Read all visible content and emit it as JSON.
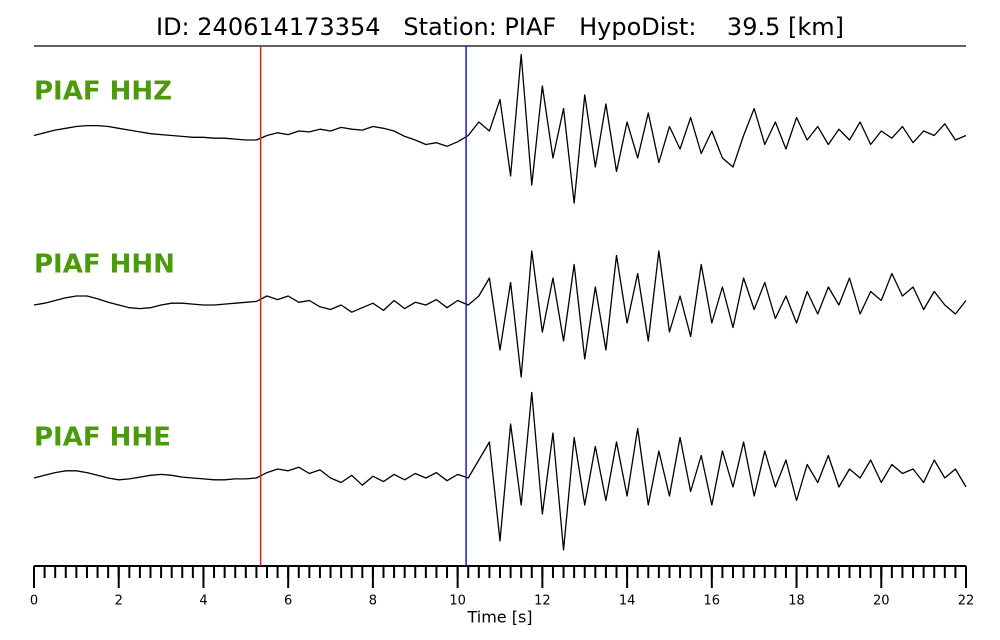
{
  "chart_data": {
    "type": "seismogram",
    "title": "ID: 240614173354   Station: PIAF   HypoDist:    39.5 [km]",
    "xlabel": "Time [s]",
    "xlim": [
      0,
      22
    ],
    "xticks": [
      0,
      2,
      4,
      6,
      8,
      10,
      12,
      14,
      16,
      18,
      20,
      22
    ],
    "xminor": 0.25,
    "ylim": [
      -1,
      1
    ],
    "label_color": "#4a9a0a",
    "markers": [
      {
        "x": 5.35,
        "color": "#e0201a"
      },
      {
        "x": 10.2,
        "color": "#1a1ad0"
      }
    ],
    "x": [
      0,
      0.25,
      0.5,
      0.75,
      1,
      1.25,
      1.5,
      1.75,
      2,
      2.25,
      2.5,
      2.75,
      3,
      3.25,
      3.5,
      3.75,
      4,
      4.25,
      4.5,
      4.75,
      5,
      5.25,
      5.5,
      5.75,
      6,
      6.25,
      6.5,
      6.75,
      7,
      7.25,
      7.5,
      7.75,
      8,
      8.25,
      8.5,
      8.75,
      9,
      9.25,
      9.5,
      9.75,
      10,
      10.25,
      10.5,
      10.75,
      11,
      11.25,
      11.5,
      11.75,
      12,
      12.25,
      12.5,
      12.75,
      13,
      13.25,
      13.5,
      13.75,
      14,
      14.25,
      14.5,
      14.75,
      15,
      15.25,
      15.5,
      15.75,
      16,
      16.25,
      16.5,
      16.75,
      17,
      17.25,
      17.5,
      17.75,
      18,
      18.25,
      18.5,
      18.75,
      19,
      19.25,
      19.5,
      19.75,
      20,
      20.25,
      20.5,
      20.75,
      21,
      21.25,
      21.5,
      21.75,
      22
    ],
    "series": [
      {
        "name": "PIAF HHZ",
        "color": "#000000",
        "values": [
          0.05,
          0.08,
          0.11,
          0.13,
          0.15,
          0.16,
          0.16,
          0.15,
          0.13,
          0.11,
          0.09,
          0.07,
          0.06,
          0.05,
          0.04,
          0.03,
          0.03,
          0.02,
          0.02,
          0.01,
          0.0,
          0.0,
          0.05,
          0.08,
          0.06,
          0.1,
          0.09,
          0.12,
          0.1,
          0.14,
          0.12,
          0.11,
          0.15,
          0.13,
          0.1,
          0.04,
          0.0,
          -0.05,
          -0.03,
          -0.07,
          -0.02,
          0.05,
          0.2,
          0.1,
          0.45,
          -0.4,
          0.95,
          -0.5,
          0.6,
          -0.2,
          0.35,
          -0.7,
          0.5,
          -0.3,
          0.4,
          -0.35,
          0.2,
          -0.2,
          0.3,
          -0.25,
          0.15,
          -0.1,
          0.25,
          -0.15,
          0.1,
          -0.2,
          -0.3,
          0.05,
          0.35,
          -0.05,
          0.2,
          -0.1,
          0.25,
          0.0,
          0.15,
          -0.05,
          0.12,
          0.0,
          0.2,
          -0.05,
          0.1,
          0.02,
          0.15,
          -0.03,
          0.1,
          0.05,
          0.18,
          0.0,
          0.05
        ]
      },
      {
        "name": "PIAF HHN",
        "color": "#000000",
        "values": [
          0.0,
          0.02,
          0.05,
          0.08,
          0.1,
          0.1,
          0.07,
          0.03,
          0.0,
          -0.03,
          -0.04,
          -0.03,
          0.0,
          0.02,
          0.02,
          0.01,
          0.0,
          0.0,
          0.01,
          0.02,
          0.03,
          0.04,
          0.1,
          0.06,
          0.1,
          0.03,
          0.05,
          -0.02,
          -0.05,
          0.0,
          -0.08,
          -0.03,
          0.02,
          -0.06,
          0.05,
          -0.04,
          0.03,
          0.0,
          0.06,
          -0.03,
          0.05,
          0.0,
          0.1,
          0.3,
          -0.5,
          0.25,
          -0.8,
          0.6,
          -0.3,
          0.3,
          -0.4,
          0.45,
          -0.6,
          0.2,
          -0.5,
          0.55,
          -0.2,
          0.35,
          -0.4,
          0.6,
          -0.3,
          0.1,
          -0.35,
          0.45,
          -0.2,
          0.2,
          -0.25,
          0.3,
          -0.05,
          0.25,
          -0.15,
          0.1,
          -0.2,
          0.15,
          -0.1,
          0.2,
          0.0,
          0.3,
          -0.1,
          0.15,
          0.05,
          0.35,
          0.1,
          0.2,
          -0.05,
          0.15,
          0.0,
          -0.1,
          0.05
        ]
      },
      {
        "name": "PIAF HHE",
        "color": "#000000",
        "values": [
          0.0,
          0.03,
          0.06,
          0.08,
          0.08,
          0.06,
          0.03,
          0.0,
          -0.02,
          -0.01,
          0.01,
          0.03,
          0.04,
          0.03,
          0.01,
          0.0,
          -0.01,
          -0.02,
          -0.02,
          -0.01,
          -0.01,
          0.0,
          0.06,
          0.1,
          0.08,
          0.12,
          0.05,
          0.09,
          0.0,
          -0.05,
          0.03,
          -0.08,
          0.02,
          -0.04,
          0.04,
          -0.02,
          0.05,
          0.0,
          0.06,
          -0.03,
          0.04,
          0.0,
          0.2,
          0.4,
          -0.7,
          0.6,
          -0.3,
          0.95,
          -0.4,
          0.5,
          -0.8,
          0.45,
          -0.3,
          0.35,
          -0.25,
          0.4,
          -0.2,
          0.55,
          -0.3,
          0.3,
          -0.2,
          0.45,
          -0.15,
          0.25,
          -0.3,
          0.3,
          -0.1,
          0.4,
          -0.2,
          0.3,
          -0.1,
          0.2,
          -0.25,
          0.15,
          -0.05,
          0.25,
          -0.1,
          0.1,
          0.0,
          0.2,
          -0.05,
          0.15,
          0.05,
          0.1,
          -0.05,
          0.2,
          0.0,
          0.1,
          -0.1
        ]
      }
    ]
  }
}
